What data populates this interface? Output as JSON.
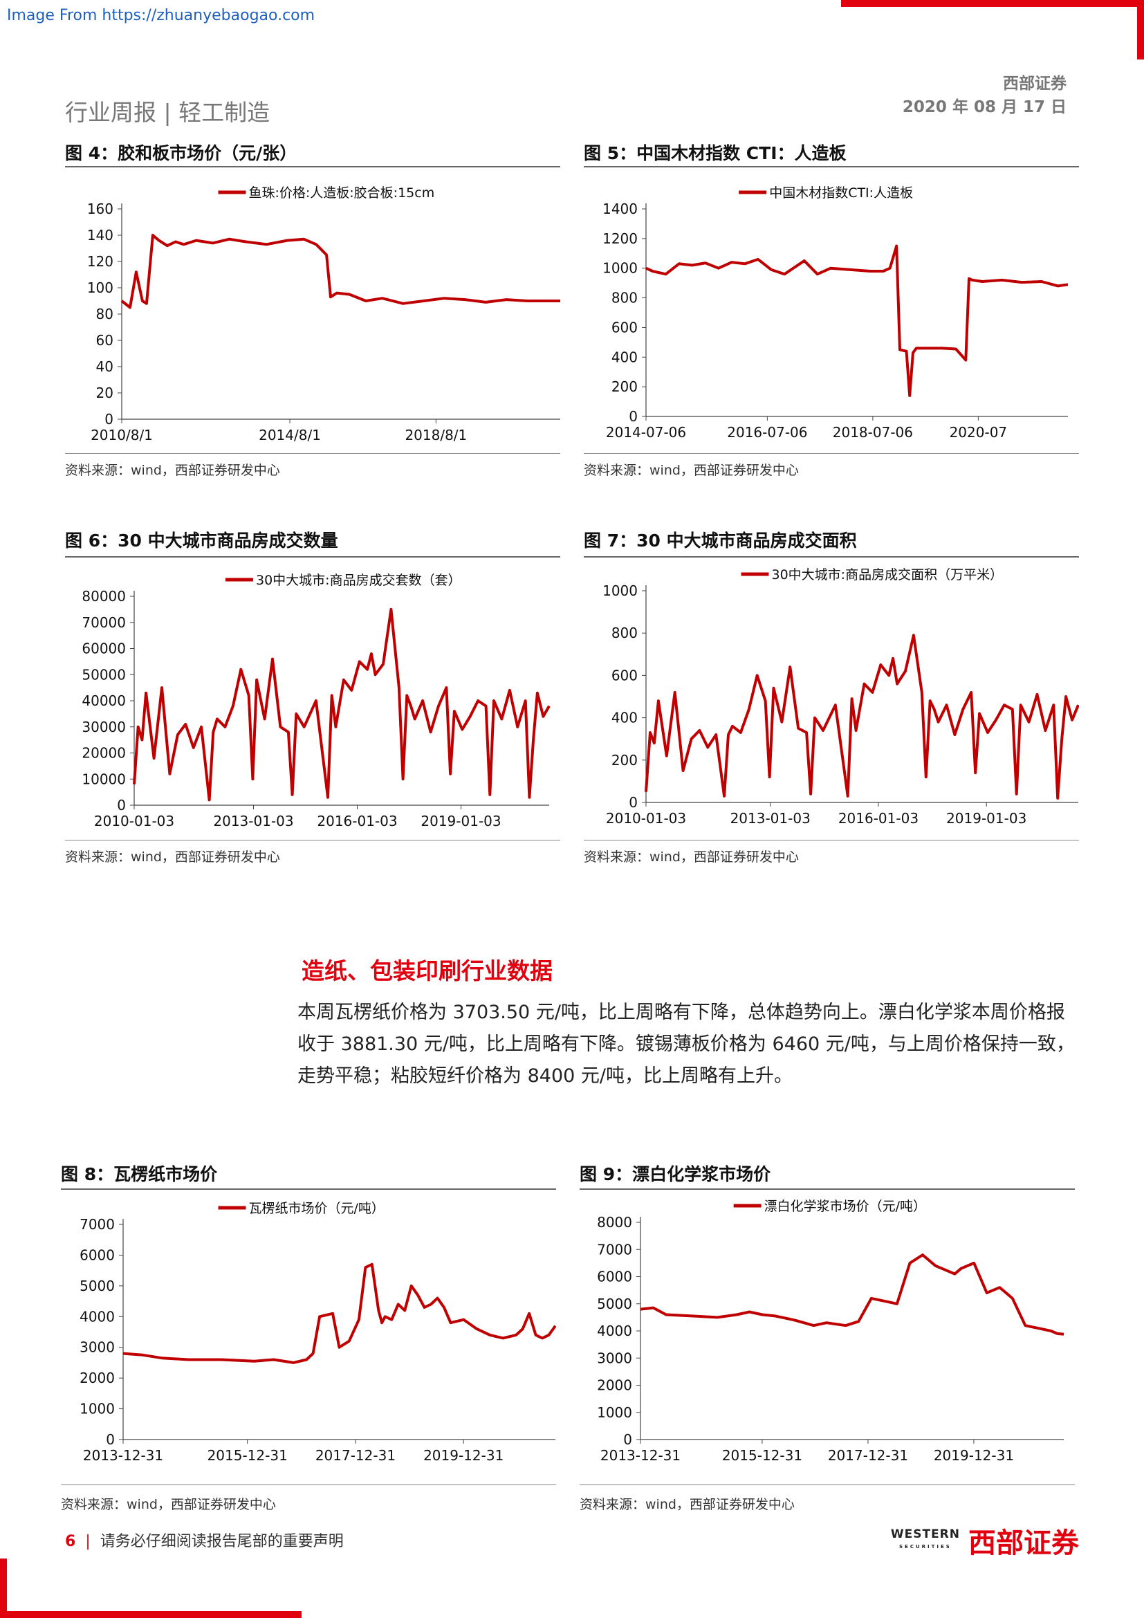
{
  "watermark": "Image From https://zhuanyebaogao.com",
  "header": {
    "left": "行业周报 | 轻工制造",
    "company": "西部证券",
    "date": "2020 年 08 月 17 日"
  },
  "source_text": "资料来源：wind，西部证券研发中心",
  "section": {
    "heading": "造纸、包装印刷行业数据",
    "lines": [
      "本周瓦楞纸价格为 3703.50 元/吨，比上周略有下降，总体趋势向上。漂白化学浆本周价格报",
      "收于 3881.30 元/吨，比上周略有下降。镀锡薄板价格为 6460 元/吨，与上周价格保持一致，",
      "走势平稳；粘胶短纤价格为 8400 元/吨，比上周略有上升。"
    ]
  },
  "footer": {
    "page": "6",
    "sep": "|",
    "text": "请务必仔细阅读报告尾部的重要声明",
    "logo_en": "WESTERN",
    "logo_en_sub": "SECURITIES",
    "logo_cn": "西部证券"
  },
  "colors": {
    "series": "#c00000",
    "accent": "#e0000e"
  },
  "chart_data": [
    {
      "id": "fig4",
      "type": "line",
      "title": "图 4：胶和板市场价（元/张）",
      "series": [
        {
          "name": "鱼珠:价格:人造板:胶合板:15cm",
          "x": [
            2010.0,
            2010.2,
            2010.35,
            2010.5,
            2010.6,
            2010.75,
            2010.9,
            2011.1,
            2011.3,
            2011.5,
            2011.8,
            2012.2,
            2012.6,
            2013.0,
            2013.5,
            2014.0,
            2014.4,
            2014.7,
            2014.95,
            2015.05,
            2015.2,
            2015.5,
            2015.9,
            2016.3,
            2016.8,
            2017.3,
            2017.8,
            2018.3,
            2018.8,
            2019.3,
            2019.8,
            2020.2,
            2020.6
          ],
          "values": [
            90,
            85,
            112,
            90,
            88,
            140,
            136,
            132,
            135,
            133,
            136,
            134,
            137,
            135,
            133,
            136,
            137,
            133,
            125,
            93,
            96,
            95,
            90,
            92,
            88,
            90,
            92,
            91,
            89,
            91,
            90,
            90,
            90
          ]
        }
      ],
      "xticks": [
        "2010/8/1",
        "2014/8/1",
        "2018/8/1"
      ],
      "ylim": [
        0,
        160
      ],
      "yticks": [
        0,
        20,
        40,
        60,
        80,
        100,
        120,
        140,
        160
      ]
    },
    {
      "id": "fig5",
      "type": "line",
      "title": "图 5：中国木材指数 CTI：人造板",
      "series": [
        {
          "name": "中国木材指数CTI:人造板",
          "x": [
            2014.5,
            2014.6,
            2014.8,
            2015.0,
            2015.2,
            2015.4,
            2015.6,
            2015.8,
            2016.0,
            2016.2,
            2016.4,
            2016.6,
            2016.9,
            2017.1,
            2017.3,
            2017.6,
            2017.9,
            2018.1,
            2018.2,
            2018.3,
            2018.35,
            2018.45,
            2018.5,
            2018.55,
            2018.6,
            2018.8,
            2019.0,
            2019.2,
            2019.35,
            2019.4,
            2019.45,
            2019.6,
            2019.9,
            2020.2,
            2020.5,
            2020.75,
            2020.9
          ],
          "values": [
            1000,
            980,
            960,
            1030,
            1020,
            1035,
            1000,
            1040,
            1030,
            1060,
            990,
            960,
            1050,
            960,
            1000,
            990,
            980,
            980,
            1000,
            1150,
            450,
            440,
            140,
            430,
            460,
            460,
            460,
            455,
            380,
            930,
            920,
            910,
            920,
            905,
            910,
            880,
            890
          ]
        }
      ],
      "xticks": [
        "2014-07-06",
        "2016-07-06",
        "2018-07-06",
        "2020-07"
      ],
      "ylim": [
        0,
        1400
      ],
      "yticks": [
        0,
        200,
        400,
        600,
        800,
        1000,
        1200,
        1400
      ]
    },
    {
      "id": "fig6",
      "type": "line",
      "title": "图 6：30 中大城市商品房成交数量",
      "series": [
        {
          "name": "30中大城市:商品房成交套数（套）",
          "x": [
            2010.0,
            2010.1,
            2010.2,
            2010.3,
            2010.5,
            2010.7,
            2010.9,
            2011.1,
            2011.3,
            2011.5,
            2011.7,
            2011.9,
            2012.0,
            2012.1,
            2012.3,
            2012.5,
            2012.7,
            2012.9,
            2013.0,
            2013.1,
            2013.3,
            2013.5,
            2013.7,
            2013.9,
            2014.0,
            2014.1,
            2014.3,
            2014.6,
            2014.9,
            2015.0,
            2015.1,
            2015.3,
            2015.5,
            2015.7,
            2015.9,
            2016.0,
            2016.1,
            2016.3,
            2016.5,
            2016.7,
            2016.8,
            2016.9,
            2017.0,
            2017.1,
            2017.3,
            2017.5,
            2017.7,
            2017.9,
            2018.0,
            2018.1,
            2018.3,
            2018.5,
            2018.7,
            2018.9,
            2019.0,
            2019.1,
            2019.3,
            2019.5,
            2019.7,
            2019.9,
            2020.0,
            2020.1,
            2020.2,
            2020.35,
            2020.5
          ],
          "values": [
            8000,
            30000,
            25000,
            43000,
            18000,
            45000,
            12000,
            27000,
            31000,
            22000,
            30000,
            2000,
            28000,
            33000,
            30000,
            38000,
            52000,
            42000,
            10000,
            48000,
            33000,
            56000,
            30000,
            28000,
            4000,
            35000,
            30000,
            40000,
            3000,
            42000,
            30000,
            48000,
            44000,
            55000,
            52000,
            58000,
            50000,
            54000,
            75000,
            45000,
            10000,
            42000,
            38000,
            33000,
            40000,
            28000,
            38000,
            45000,
            12000,
            36000,
            29000,
            34000,
            40000,
            38000,
            4000,
            40000,
            33000,
            44000,
            30000,
            40000,
            3000,
            25000,
            43000,
            34000,
            38000
          ]
        }
      ],
      "xticks": [
        "2010-01-03",
        "2013-01-03",
        "2016-01-03",
        "2019-01-03"
      ],
      "ylim": [
        0,
        80000
      ],
      "yticks": [
        0,
        10000,
        20000,
        30000,
        40000,
        50000,
        60000,
        70000,
        80000
      ]
    },
    {
      "id": "fig7",
      "type": "line",
      "title": "图 7：30 中大城市商品房成交面积",
      "series": [
        {
          "name": "30中大城市:商品房成交面积（万平米）",
          "x": [
            2010.0,
            2010.1,
            2010.2,
            2010.3,
            2010.5,
            2010.7,
            2010.9,
            2011.1,
            2011.3,
            2011.5,
            2011.7,
            2011.9,
            2012.0,
            2012.1,
            2012.3,
            2012.5,
            2012.7,
            2012.9,
            2013.0,
            2013.1,
            2013.3,
            2013.5,
            2013.7,
            2013.9,
            2014.0,
            2014.1,
            2014.3,
            2014.6,
            2014.9,
            2015.0,
            2015.1,
            2015.3,
            2015.5,
            2015.7,
            2015.9,
            2016.0,
            2016.1,
            2016.3,
            2016.5,
            2016.7,
            2016.8,
            2016.9,
            2017.0,
            2017.1,
            2017.3,
            2017.5,
            2017.7,
            2017.9,
            2018.0,
            2018.1,
            2018.3,
            2018.5,
            2018.7,
            2018.9,
            2019.0,
            2019.1,
            2019.3,
            2019.5,
            2019.7,
            2019.9,
            2020.0,
            2020.1,
            2020.2,
            2020.35,
            2020.5
          ],
          "values": [
            50,
            330,
            280,
            480,
            220,
            520,
            150,
            300,
            340,
            260,
            320,
            30,
            320,
            360,
            330,
            440,
            600,
            480,
            120,
            540,
            380,
            640,
            350,
            330,
            40,
            400,
            340,
            460,
            30,
            490,
            340,
            560,
            520,
            650,
            600,
            680,
            560,
            620,
            790,
            520,
            120,
            480,
            440,
            380,
            460,
            320,
            440,
            520,
            140,
            420,
            330,
            390,
            460,
            440,
            40,
            460,
            380,
            510,
            340,
            460,
            20,
            300,
            500,
            390,
            460
          ]
        }
      ],
      "xticks": [
        "2010-01-03",
        "2013-01-03",
        "2016-01-03",
        "2019-01-03"
      ],
      "ylim": [
        0,
        1000
      ],
      "yticks": [
        0,
        200,
        400,
        600,
        800,
        1000
      ]
    },
    {
      "id": "fig8",
      "type": "line",
      "title": "图 8：瓦楞纸市场价",
      "series": [
        {
          "name": "瓦楞纸市场价（元/吨）",
          "x": [
            2014.0,
            2014.3,
            2014.6,
            2015.0,
            2015.5,
            2016.0,
            2016.3,
            2016.6,
            2016.8,
            2016.9,
            2017.0,
            2017.2,
            2017.3,
            2017.45,
            2017.6,
            2017.7,
            2017.8,
            2017.9,
            2017.95,
            2018.0,
            2018.1,
            2018.2,
            2018.3,
            2018.4,
            2018.5,
            2018.6,
            2018.7,
            2018.8,
            2018.9,
            2019.0,
            2019.2,
            2019.4,
            2019.6,
            2019.8,
            2020.0,
            2020.1,
            2020.2,
            2020.3,
            2020.4,
            2020.5,
            2020.6
          ],
          "values": [
            2800,
            2750,
            2650,
            2600,
            2600,
            2550,
            2600,
            2500,
            2600,
            2800,
            4000,
            4100,
            3000,
            3200,
            3900,
            5600,
            5700,
            4200,
            3800,
            4000,
            3900,
            4400,
            4200,
            5000,
            4700,
            4300,
            4400,
            4600,
            4300,
            3800,
            3900,
            3600,
            3400,
            3300,
            3400,
            3600,
            4100,
            3400,
            3300,
            3400,
            3700
          ]
        }
      ],
      "xticks": [
        "2013-12-31",
        "2015-12-31",
        "2017-12-31",
        "2019-12-31"
      ],
      "ylim": [
        0,
        7000
      ],
      "yticks": [
        0,
        1000,
        2000,
        3000,
        4000,
        5000,
        6000,
        7000
      ]
    },
    {
      "id": "fig9",
      "type": "line",
      "title": "图 9：漂白化学浆市场价",
      "series": [
        {
          "name": "漂白化学浆市场价（元/吨）",
          "x": [
            2014.0,
            2014.2,
            2014.4,
            2014.8,
            2015.2,
            2015.5,
            2015.7,
            2015.9,
            2016.1,
            2016.4,
            2016.7,
            2016.9,
            2017.2,
            2017.4,
            2017.6,
            2017.8,
            2018.0,
            2018.2,
            2018.4,
            2018.6,
            2018.8,
            2018.9,
            2019.0,
            2019.2,
            2019.4,
            2019.6,
            2019.8,
            2020.0,
            2020.2,
            2020.4,
            2020.5,
            2020.6
          ],
          "values": [
            4800,
            4850,
            4600,
            4550,
            4500,
            4600,
            4700,
            4600,
            4550,
            4400,
            4200,
            4300,
            4200,
            4350,
            5200,
            5100,
            5000,
            6500,
            6800,
            6400,
            6200,
            6100,
            6300,
            6500,
            5400,
            5600,
            5200,
            4200,
            4100,
            4000,
            3900,
            3880
          ]
        }
      ],
      "xticks": [
        "2013-12-31",
        "2015-12-31",
        "2017-12-31",
        "2019-12-31"
      ],
      "ylim": [
        0,
        8000
      ],
      "yticks": [
        0,
        1000,
        2000,
        3000,
        4000,
        5000,
        6000,
        7000,
        8000
      ]
    }
  ]
}
